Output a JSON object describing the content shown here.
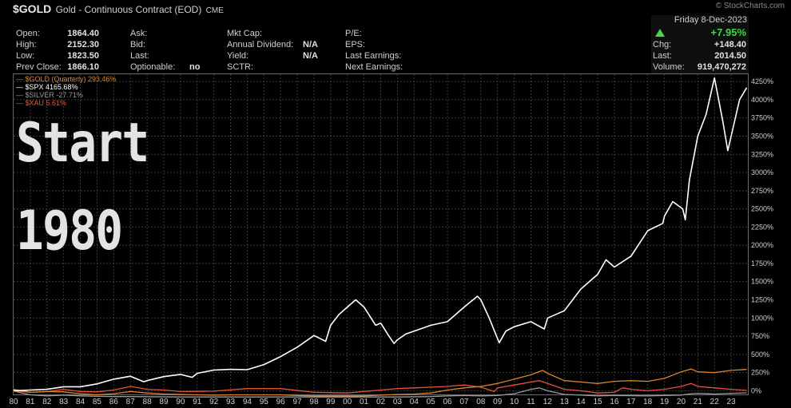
{
  "header": {
    "symbol": "$GOLD",
    "description": "Gold - Continuous Contract (EOD)",
    "exchange": "CME",
    "watermark": "© StockCharts.com",
    "date": "Friday  8-Dec-2023",
    "pct_change": "+7.95%",
    "quote": {
      "open_label": "Open:",
      "open": "1864.40",
      "high_label": "High:",
      "high": "2152.30",
      "low_label": "Low:",
      "low": "1823.50",
      "prev_close_label": "Prev Close:",
      "prev_close": "1866.10",
      "ask_label": "Ask:",
      "bid_label": "Bid:",
      "last_label": "Last:",
      "optionable_label": "Optionable:",
      "optionable": "no",
      "mkt_cap_label": "Mkt Cap:",
      "annual_dividend_label": "Annual Dividend:",
      "annual_dividend": "N/A",
      "yield_label": "Yield:",
      "yield": "N/A",
      "sctr_label": "SCTR:",
      "pe_label": "P/E:",
      "eps_label": "EPS:",
      "last_earnings_label": "Last Earnings:",
      "next_earnings_label": "Next Earnings:",
      "chg_label": "Chg:",
      "chg": "+148.40",
      "last2_label": "Last:",
      "last": "2014.50",
      "volume_label": "Volume:",
      "volume": "919,470,272"
    }
  },
  "overlay_text": {
    "line1": "Start",
    "line2": "1980"
  },
  "colors": {
    "gold": "#d9862e",
    "spx": "#ffffff",
    "silver": "#9a9a9a",
    "xau": "#e8523a",
    "up": "#42d84a"
  },
  "chart_data": {
    "type": "line",
    "ylim": [
      -50,
      4350
    ],
    "yticks": [
      0,
      250,
      500,
      750,
      1000,
      1250,
      1500,
      1750,
      2000,
      2250,
      2500,
      2750,
      3000,
      3250,
      3500,
      3750,
      4000,
      4250
    ],
    "ytick_labels": [
      "0%",
      "250%",
      "500%",
      "750%",
      "1000%",
      "1250%",
      "1500%",
      "1750%",
      "2000%",
      "2250%",
      "2500%",
      "2750%",
      "3000%",
      "3250%",
      "3500%",
      "3750%",
      "4000%",
      "4250%"
    ],
    "xlim": [
      1980,
      2024
    ],
    "x_tick_labels": [
      "80",
      "81",
      "82",
      "83",
      "84",
      "85",
      "86",
      "87",
      "88",
      "89",
      "90",
      "91",
      "92",
      "93",
      "94",
      "95",
      "96",
      "97",
      "98",
      "99",
      "00",
      "01",
      "02",
      "03",
      "04",
      "05",
      "06",
      "07",
      "08",
      "09",
      "10",
      "11",
      "12",
      "13",
      "14",
      "15",
      "16",
      "17",
      "18",
      "19",
      "20",
      "21",
      "22",
      "23"
    ],
    "legend": [
      "$GOLD (Quarterly) 293.46%",
      "$SPX 4165.68%",
      "$SILVER -27.71%",
      "$XAU 5.61%"
    ],
    "series": [
      {
        "name": "$SPX",
        "color": "#ffffff",
        "x": [
          1980,
          1981,
          1982,
          1983,
          1984,
          1985,
          1986,
          1987,
          1987.8,
          1988,
          1989,
          1990,
          1990.7,
          1991,
          1992,
          1993,
          1994,
          1995,
          1996,
          1997,
          1998,
          1998.7,
          1999,
          1999.5,
          2000,
          2000.5,
          2001,
          2001.7,
          2002,
          2002.5,
          2002.8,
          2003,
          2003.5,
          2004,
          2005,
          2006,
          2007,
          2007.8,
          2008,
          2008.5,
          2009.1,
          2009.5,
          2010,
          2011,
          2011.8,
          2012,
          2013,
          2014,
          2015,
          2015.5,
          2016,
          2017,
          2018,
          2018.9,
          2019,
          2019.5,
          2020.1,
          2020.25,
          2020.5,
          2021,
          2021.5,
          2022,
          2022.5,
          2022.8,
          2023,
          2023.5,
          2023.93
        ],
        "y": [
          0,
          10,
          20,
          55,
          55,
          95,
          160,
          200,
          125,
          140,
          195,
          225,
          185,
          240,
          285,
          295,
          290,
          360,
          470,
          600,
          760,
          680,
          900,
          1050,
          1150,
          1250,
          1150,
          900,
          930,
          750,
          650,
          700,
          780,
          820,
          900,
          950,
          1150,
          1300,
          1250,
          1000,
          660,
          820,
          880,
          950,
          850,
          1000,
          1100,
          1400,
          1600,
          1800,
          1700,
          1850,
          2200,
          2300,
          2400,
          2600,
          2500,
          2350,
          2900,
          3500,
          3800,
          4300,
          3700,
          3300,
          3500,
          4000,
          4165.68
        ]
      },
      {
        "name": "$GOLD",
        "color": "#d9862e",
        "x": [
          1980,
          1981,
          1982,
          1983,
          1984,
          1985,
          1986,
          1987,
          1988,
          1989,
          1990,
          1991,
          1992,
          1993,
          1994,
          1995,
          1996,
          1997,
          1998,
          1999,
          2000,
          2001,
          2002,
          2003,
          2004,
          2005,
          2006,
          2007,
          2008,
          2009,
          2010,
          2011,
          2011.7,
          2012,
          2013,
          2014,
          2015,
          2016,
          2017,
          2018,
          2019,
          2020,
          2020.6,
          2021,
          2022,
          2023,
          2023.93
        ],
        "y": [
          20,
          -20,
          -10,
          -15,
          -40,
          -55,
          -40,
          -10,
          -30,
          -45,
          -50,
          -55,
          -60,
          -55,
          -55,
          -55,
          -55,
          -65,
          -70,
          -70,
          -70,
          -70,
          -60,
          -50,
          -45,
          -30,
          10,
          40,
          60,
          100,
          160,
          220,
          280,
          240,
          140,
          120,
          100,
          130,
          140,
          130,
          170,
          260,
          300,
          260,
          250,
          280,
          293.46
        ]
      },
      {
        "name": "$SILVER",
        "color": "#9a9a9a",
        "x": [
          1980,
          1980.3,
          1981,
          1982,
          1983,
          1984,
          1985,
          1986,
          1987,
          1990,
          1995,
          2000,
          2003,
          2005,
          2006,
          2007,
          2008,
          2009,
          2010,
          2011,
          2011.5,
          2012,
          2013,
          2014,
          2015,
          2016,
          2018,
          2020,
          2020.6,
          2021,
          2022,
          2023,
          2023.93
        ],
        "y": [
          0,
          -20,
          -55,
          -70,
          -60,
          -70,
          -75,
          -80,
          -80,
          -85,
          -85,
          -85,
          -85,
          -80,
          -70,
          -65,
          -70,
          -65,
          -40,
          20,
          40,
          0,
          -50,
          -60,
          -70,
          -65,
          -70,
          -60,
          -40,
          -35,
          -45,
          -35,
          -27.71
        ]
      },
      {
        "name": "$XAU",
        "color": "#e8523a",
        "x": [
          1980,
          1981,
          1982,
          1983,
          1984,
          1985,
          1986,
          1987,
          1988,
          1989,
          1990,
          1992,
          1994,
          1996,
          1998,
          2000,
          2002,
          2003,
          2004,
          2006,
          2007,
          2008,
          2008.8,
          2009,
          2010,
          2011,
          2011.5,
          2012,
          2013,
          2014,
          2015,
          2016,
          2016.5,
          2017,
          2018,
          2019,
          2020,
          2020.6,
          2021,
          2022,
          2023,
          2023.93
        ],
        "y": [
          0,
          -20,
          -10,
          20,
          -10,
          -15,
          10,
          60,
          20,
          10,
          -10,
          -5,
          30,
          30,
          -20,
          -30,
          10,
          30,
          40,
          60,
          80,
          50,
          -10,
          40,
          80,
          120,
          140,
          100,
          20,
          0,
          -30,
          -20,
          40,
          20,
          0,
          20,
          60,
          100,
          60,
          40,
          20,
          5.61
        ]
      }
    ]
  }
}
